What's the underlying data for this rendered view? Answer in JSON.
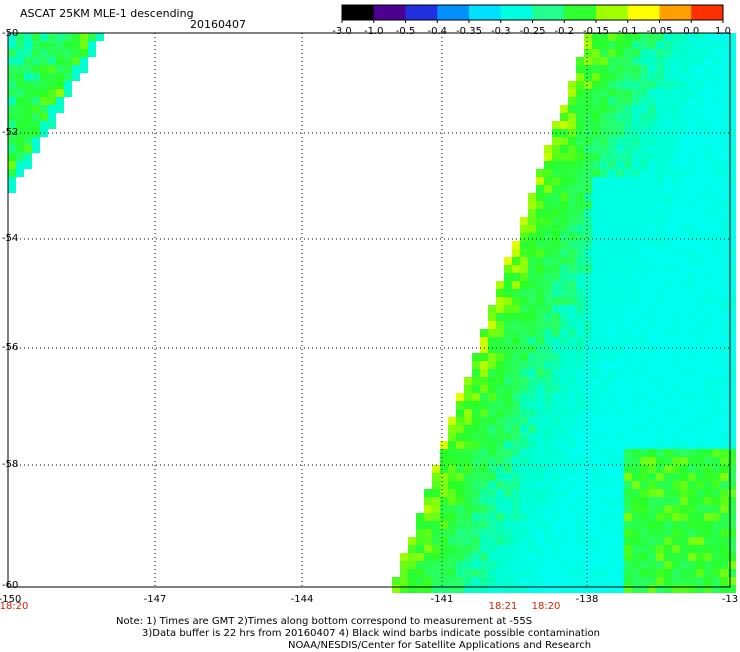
{
  "header": {
    "title": "ASCAT 25KM MLE-1 descending",
    "date": "20160407"
  },
  "colorbar": {
    "ticks": [
      "-3.0",
      "-1.0",
      "-0.5",
      "-0.4",
      "-0.35",
      "-0.3",
      "-0.25",
      "-0.2",
      "-0.15",
      "-0.1",
      "-0.05",
      "0.0",
      "1.0"
    ],
    "colors": [
      "#000000",
      "#4b0090",
      "#2030e0",
      "#0090ff",
      "#00e0ff",
      "#00ffe0",
      "#20ff90",
      "#30ff30",
      "#a0ff00",
      "#ffff00",
      "#ffa000",
      "#ff3000"
    ]
  },
  "map": {
    "lat_labels": [
      "-50",
      "-52",
      "-54",
      "-56",
      "-58",
      "-60"
    ],
    "lon_labels": [
      "-150",
      "-147",
      "-144",
      "-141",
      "-138",
      "-13"
    ],
    "time_labels": [
      "18:20",
      "18:21",
      "18:20"
    ]
  },
  "notes": {
    "line1": "Note: 1) Times are GMT 2)Times along bottom correspond to measurement at -55S",
    "line2": "3)Data buffer is 22 hrs from 20160407 4) Black wind barbs indicate possible contamination",
    "line3": "NOAA/NESDIS/Center for Satellite Applications and Research"
  }
}
